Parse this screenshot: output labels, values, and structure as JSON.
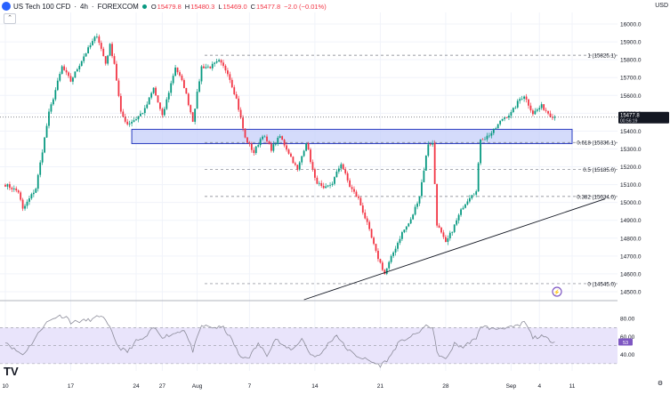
{
  "header": {
    "symbol": "US Tech 100 CFD",
    "separator1": "·",
    "timeframe": "4h",
    "separator2": "·",
    "exchange": "FOREXCOM",
    "o_label": "O",
    "o_value": "15479.8",
    "h_label": "H",
    "h_value": "15480.3",
    "l_label": "L",
    "l_value": "15469.0",
    "c_label": "C",
    "c_value": "15477.8",
    "change": "−2.0 (−0.01%)",
    "collapse_glyph": "⌃",
    "currency": "USD"
  },
  "colors": {
    "up": "#089981",
    "down": "#f23645",
    "zone_fill": "#c5cffa",
    "zone_border": "#2a3cc0",
    "rsi_band": "#e9e4fb",
    "rsi_line": "#8c8c9a",
    "price_tag": "#131722"
  },
  "price_tag": {
    "price": "15477.8",
    "countdown": "00:56:19"
  },
  "rsi_tag": "53",
  "watermark": "TV",
  "event_marker": "⚡",
  "chart_data": {
    "type": "candlestick",
    "title": "US Tech 100 CFD · 4h · FOREXCOM",
    "ylim": [
      14455,
      16065
    ],
    "y_ticks": [
      14500,
      14600,
      14700,
      14800,
      14900,
      15000,
      15100,
      15200,
      15300,
      15400,
      15500,
      15600,
      15700,
      15800,
      15900,
      16000
    ],
    "y_tick_labels": [
      "14500.0",
      "14600.0",
      "14700.0",
      "14800.0",
      "14900.0",
      "15000.0",
      "15100.0",
      "15200.0",
      "15300.0",
      "15400.0",
      "15500.0",
      "15600.0",
      "15700.0",
      "15800.0",
      "15900.0",
      "16000.0"
    ],
    "x_labels": [
      {
        "label": "10",
        "bar": 0
      },
      {
        "label": "17",
        "bar": 30
      },
      {
        "label": "24",
        "bar": 60
      },
      {
        "label": "27",
        "bar": 72
      },
      {
        "label": "Aug",
        "bar": 88
      },
      {
        "label": "7",
        "bar": 112
      },
      {
        "label": "14",
        "bar": 142
      },
      {
        "label": "21",
        "bar": 172
      },
      {
        "label": "28",
        "bar": 202
      },
      {
        "label": "Sep",
        "bar": 232
      },
      {
        "label": "4",
        "bar": 245
      },
      {
        "label": "11",
        "bar": 260
      }
    ],
    "close_path": [
      [
        0,
        15100
      ],
      [
        6,
        15060
      ],
      [
        8,
        14960
      ],
      [
        14,
        15080
      ],
      [
        20,
        15500
      ],
      [
        26,
        15760
      ],
      [
        30,
        15680
      ],
      [
        36,
        15820
      ],
      [
        42,
        15940
      ],
      [
        46,
        15780
      ],
      [
        48,
        15880
      ],
      [
        50,
        15780
      ],
      [
        53,
        15500
      ],
      [
        56,
        15440
      ],
      [
        60,
        15470
      ],
      [
        64,
        15520
      ],
      [
        68,
        15640
      ],
      [
        72,
        15480
      ],
      [
        78,
        15760
      ],
      [
        82,
        15650
      ],
      [
        86,
        15460
      ],
      [
        90,
        15760
      ],
      [
        94,
        15760
      ],
      [
        98,
        15790
      ],
      [
        102,
        15730
      ],
      [
        106,
        15580
      ],
      [
        110,
        15360
      ],
      [
        114,
        15280
      ],
      [
        118,
        15380
      ],
      [
        122,
        15300
      ],
      [
        126,
        15370
      ],
      [
        130,
        15280
      ],
      [
        134,
        15180
      ],
      [
        138,
        15340
      ],
      [
        142,
        15130
      ],
      [
        146,
        15070
      ],
      [
        150,
        15110
      ],
      [
        154,
        15220
      ],
      [
        158,
        15090
      ],
      [
        162,
        15020
      ],
      [
        166,
        14880
      ],
      [
        170,
        14720
      ],
      [
        174,
        14600
      ],
      [
        178,
        14720
      ],
      [
        182,
        14830
      ],
      [
        186,
        14900
      ],
      [
        190,
        15040
      ],
      [
        194,
        15330
      ],
      [
        196,
        15330
      ],
      [
        198,
        14880
      ],
      [
        202,
        14770
      ],
      [
        206,
        14870
      ],
      [
        210,
        14980
      ],
      [
        214,
        15050
      ],
      [
        216,
        15060
      ],
      [
        218,
        15360
      ],
      [
        220,
        15360
      ],
      [
        224,
        15400
      ],
      [
        228,
        15470
      ],
      [
        232,
        15500
      ],
      [
        236,
        15580
      ],
      [
        238,
        15600
      ],
      [
        242,
        15500
      ],
      [
        246,
        15540
      ],
      [
        250,
        15490
      ],
      [
        252,
        15480
      ]
    ],
    "fib_levels": [
      {
        "ratio": "1",
        "price": 15825.1,
        "label": "1 (15825.1)"
      },
      {
        "ratio": "0.618",
        "price": 15336.1,
        "label": "0.618 (15336.1)"
      },
      {
        "ratio": "0.5",
        "price": 15185.0,
        "label": "0.5 (15185.0)"
      },
      {
        "ratio": "0.382",
        "price": 15034.0,
        "label": "0.382 (15034.0)"
      },
      {
        "ratio": "0",
        "price": 14545.0,
        "label": "0 (14545.0)"
      }
    ],
    "zone": {
      "start_bar": 58,
      "end_bar": 260,
      "price_low": 15330,
      "price_high": 15410
    },
    "trendline": {
      "start_bar": 137,
      "start_price": 14455,
      "end_bar": 275,
      "end_price": 15020
    },
    "last_price": 15477.8,
    "rsi": {
      "ylim": [
        22,
        92
      ],
      "ticks": [
        40,
        60,
        80
      ],
      "tick_labels": [
        "40.00",
        "60.00",
        "80.00"
      ],
      "band": [
        30,
        70
      ],
      "mid": 50,
      "path": [
        [
          0,
          55
        ],
        [
          4,
          46
        ],
        [
          8,
          40
        ],
        [
          12,
          52
        ],
        [
          18,
          74
        ],
        [
          24,
          83
        ],
        [
          28,
          82
        ],
        [
          30,
          76
        ],
        [
          34,
          77
        ],
        [
          40,
          79
        ],
        [
          44,
          84
        ],
        [
          48,
          69
        ],
        [
          52,
          48
        ],
        [
          56,
          43
        ],
        [
          60,
          55
        ],
        [
          64,
          58
        ],
        [
          68,
          70
        ],
        [
          72,
          60
        ],
        [
          76,
          62
        ],
        [
          82,
          68
        ],
        [
          86,
          44
        ],
        [
          90,
          72
        ],
        [
          96,
          70
        ],
        [
          100,
          70
        ],
        [
          104,
          56
        ],
        [
          108,
          36
        ],
        [
          112,
          38
        ],
        [
          116,
          52
        ],
        [
          120,
          40
        ],
        [
          124,
          58
        ],
        [
          128,
          48
        ],
        [
          132,
          46
        ],
        [
          136,
          58
        ],
        [
          140,
          40
        ],
        [
          144,
          38
        ],
        [
          148,
          52
        ],
        [
          152,
          62
        ],
        [
          156,
          48
        ],
        [
          160,
          40
        ],
        [
          164,
          36
        ],
        [
          168,
          32
        ],
        [
          172,
          28
        ],
        [
          176,
          36
        ],
        [
          180,
          52
        ],
        [
          184,
          58
        ],
        [
          188,
          62
        ],
        [
          192,
          70
        ],
        [
          194,
          72
        ],
        [
          196,
          70
        ],
        [
          198,
          42
        ],
        [
          202,
          34
        ],
        [
          206,
          52
        ],
        [
          210,
          48
        ],
        [
          214,
          56
        ],
        [
          216,
          56
        ],
        [
          218,
          72
        ],
        [
          220,
          71
        ],
        [
          224,
          68
        ],
        [
          228,
          70
        ],
        [
          232,
          70
        ],
        [
          236,
          72
        ],
        [
          238,
          77
        ],
        [
          242,
          59
        ],
        [
          246,
          60
        ],
        [
          250,
          56
        ],
        [
          252,
          54
        ]
      ]
    }
  }
}
